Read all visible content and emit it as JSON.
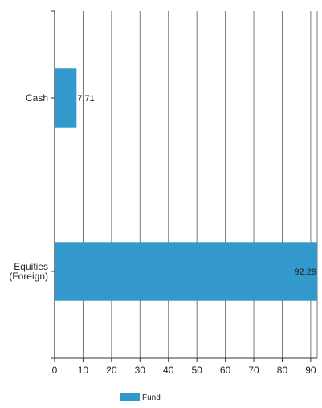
{
  "chart_data": {
    "type": "bar",
    "orientation": "horizontal",
    "categories": [
      [
        "Cash"
      ],
      [
        "Equities",
        "(Foreign)"
      ]
    ],
    "series": [
      {
        "name": "Fund",
        "values": [
          7.71,
          92.29
        ],
        "color": "#3399cc"
      }
    ],
    "data_labels": [
      "7.71",
      "92.29"
    ],
    "xticks": [
      0,
      10,
      20,
      30,
      40,
      50,
      60,
      70,
      80,
      90
    ],
    "xlim": [
      0,
      92.29
    ],
    "grid": true,
    "legend": "bottom-center"
  },
  "legend": {
    "label": "Fund",
    "color": "#3399cc"
  }
}
